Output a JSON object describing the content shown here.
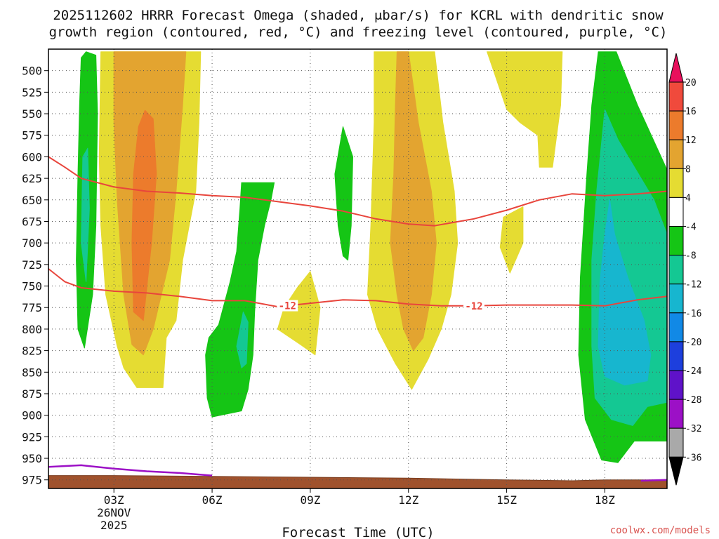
{
  "chart_data": {
    "type": "heatmap",
    "title_line1": "2025112602 HRRR Forecast Omega (shaded, μbar/s) for KCRL with dendritic snow",
    "title_line2": "growth region (contoured, red, °C) and freezing level (contoured, purple, °C)",
    "xlabel": "Forecast Time (UTC)",
    "ylabel": "",
    "credit": "coolwx.com/models",
    "x_range_hours": [
      1.0,
      19.9
    ],
    "y_range_mb": [
      475,
      985
    ],
    "y_ticks": [
      500,
      525,
      550,
      575,
      600,
      625,
      650,
      675,
      700,
      725,
      750,
      775,
      800,
      825,
      850,
      875,
      900,
      925,
      950,
      975
    ],
    "x_ticks": [
      {
        "hour": 3,
        "label": "03Z",
        "sub1": "26NOV",
        "sub2": "2025"
      },
      {
        "hour": 6,
        "label": "06Z"
      },
      {
        "hour": 9,
        "label": "09Z"
      },
      {
        "hour": 12,
        "label": "12Z"
      },
      {
        "hour": 15,
        "label": "15Z"
      },
      {
        "hour": 18,
        "label": "18Z"
      }
    ],
    "colorbar": {
      "labels": [
        "20",
        "16",
        "12",
        "8",
        "4",
        "-4",
        "-8",
        "-12",
        "-16",
        "-20",
        "-24",
        "-28",
        "-32",
        "-36"
      ],
      "colors": [
        "#e8105c",
        "#f04a3c",
        "#ec7b2c",
        "#e3a430",
        "#e5dc32",
        "#ffffff",
        "#15c515",
        "#14c893",
        "#17b6cf",
        "#1189e6",
        "#1d3fdd",
        "#5f12c9",
        "#9c10c6",
        "#a9a9a9",
        "#000000"
      ]
    },
    "omega_regions": [
      {
        "name": "green-band-03z",
        "value": -6,
        "color": "#15c515",
        "poly": [
          [
            2.0,
            485
          ],
          [
            2.15,
            478
          ],
          [
            2.45,
            482
          ],
          [
            2.5,
            550
          ],
          [
            2.45,
            680
          ],
          [
            2.35,
            760
          ],
          [
            2.1,
            822
          ],
          [
            1.9,
            800
          ],
          [
            1.85,
            720
          ],
          [
            1.9,
            620
          ],
          [
            1.95,
            540
          ]
        ]
      },
      {
        "name": "teal-band-03z",
        "value": -10,
        "color": "#14c893",
        "poly": [
          [
            2.05,
            600
          ],
          [
            2.2,
            590
          ],
          [
            2.25,
            660
          ],
          [
            2.15,
            745
          ],
          [
            2.0,
            700
          ]
        ]
      },
      {
        "name": "yellow-band-04z",
        "value": 6,
        "color": "#e5dc32",
        "poly": [
          [
            2.6,
            478
          ],
          [
            5.65,
            478
          ],
          [
            5.6,
            560
          ],
          [
            5.5,
            640
          ],
          [
            5.1,
            720
          ],
          [
            4.9,
            790
          ],
          [
            4.6,
            810
          ],
          [
            4.5,
            868
          ],
          [
            3.7,
            868
          ],
          [
            3.3,
            845
          ],
          [
            3.1,
            820
          ],
          [
            2.75,
            760
          ],
          [
            2.6,
            680
          ],
          [
            2.55,
            600
          ]
        ]
      },
      {
        "name": "orange-band-04z",
        "value": 10,
        "color": "#e3a430",
        "poly": [
          [
            3.0,
            478
          ],
          [
            5.2,
            478
          ],
          [
            5.1,
            540
          ],
          [
            4.9,
            640
          ],
          [
            4.7,
            720
          ],
          [
            4.2,
            800
          ],
          [
            3.9,
            830
          ],
          [
            3.55,
            818
          ],
          [
            3.3,
            760
          ],
          [
            3.1,
            650
          ],
          [
            3.0,
            560
          ]
        ]
      },
      {
        "name": "darkorange-core-04z",
        "value": 14,
        "color": "#ec7b2c",
        "poly": [
          [
            3.95,
            546
          ],
          [
            4.2,
            556
          ],
          [
            4.3,
            620
          ],
          [
            4.15,
            700
          ],
          [
            3.9,
            790
          ],
          [
            3.6,
            780
          ],
          [
            3.55,
            700
          ],
          [
            3.6,
            620
          ],
          [
            3.75,
            565
          ]
        ]
      },
      {
        "name": "green-band-07z",
        "value": -6,
        "color": "#15c515",
        "poly": [
          [
            6.9,
            630
          ],
          [
            7.9,
            630
          ],
          [
            7.8,
            650
          ],
          [
            7.6,
            680
          ],
          [
            7.4,
            720
          ],
          [
            7.3,
            780
          ],
          [
            7.25,
            830
          ],
          [
            7.1,
            870
          ],
          [
            6.9,
            895
          ],
          [
            6.0,
            902
          ],
          [
            5.85,
            880
          ],
          [
            5.8,
            830
          ],
          [
            5.9,
            810
          ],
          [
            6.2,
            795
          ],
          [
            6.55,
            745
          ],
          [
            6.75,
            710
          ],
          [
            6.85,
            660
          ]
        ]
      },
      {
        "name": "teal-core-07z",
        "value": -10,
        "color": "#14c893",
        "poly": [
          [
            6.95,
            780
          ],
          [
            7.1,
            792
          ],
          [
            7.05,
            840
          ],
          [
            6.9,
            845
          ],
          [
            6.75,
            820
          ]
        ]
      },
      {
        "name": "yellow-blob-09z",
        "value": 6,
        "color": "#e5dc32",
        "poly": [
          [
            9.0,
            733
          ],
          [
            9.3,
            775
          ],
          [
            9.15,
            830
          ],
          [
            8.7,
            818
          ],
          [
            8.0,
            800
          ],
          [
            8.2,
            775
          ],
          [
            8.6,
            752
          ]
        ]
      },
      {
        "name": "green-streak-10z",
        "value": -6,
        "color": "#15c515",
        "poly": [
          [
            10.0,
            565
          ],
          [
            10.3,
            600
          ],
          [
            10.25,
            680
          ],
          [
            10.15,
            720
          ],
          [
            10.0,
            715
          ],
          [
            9.85,
            680
          ],
          [
            9.75,
            620
          ]
        ]
      },
      {
        "name": "yellow-band-12z",
        "value": 6,
        "color": "#e5dc32",
        "poly": [
          [
            10.95,
            478
          ],
          [
            12.8,
            478
          ],
          [
            13.05,
            560
          ],
          [
            13.4,
            640
          ],
          [
            13.5,
            700
          ],
          [
            13.3,
            760
          ],
          [
            13.0,
            800
          ],
          [
            12.6,
            835
          ],
          [
            12.1,
            870
          ],
          [
            11.6,
            840
          ],
          [
            11.05,
            800
          ],
          [
            10.75,
            760
          ],
          [
            10.85,
            680
          ],
          [
            10.95,
            560
          ]
        ]
      },
      {
        "name": "orange-band-12z",
        "value": 10,
        "color": "#e3a430",
        "poly": [
          [
            11.65,
            478
          ],
          [
            12.0,
            478
          ],
          [
            12.3,
            560
          ],
          [
            12.7,
            640
          ],
          [
            12.85,
            700
          ],
          [
            12.7,
            760
          ],
          [
            12.45,
            810
          ],
          [
            12.15,
            825
          ],
          [
            11.85,
            800
          ],
          [
            11.65,
            760
          ],
          [
            11.45,
            700
          ],
          [
            11.55,
            620
          ],
          [
            11.6,
            540
          ]
        ]
      },
      {
        "name": "yellow-band-15z",
        "value": 6,
        "color": "#e5dc32",
        "poly": [
          [
            14.4,
            478
          ],
          [
            16.7,
            478
          ],
          [
            16.65,
            540
          ],
          [
            16.4,
            612
          ],
          [
            16.0,
            612
          ],
          [
            15.95,
            575
          ],
          [
            15.4,
            560
          ],
          [
            15.0,
            545
          ],
          [
            14.6,
            500
          ]
        ]
      },
      {
        "name": "yellow-blob-16z",
        "value": 6,
        "color": "#e5dc32",
        "poly": [
          [
            15.5,
            658
          ],
          [
            15.5,
            700
          ],
          [
            15.1,
            735
          ],
          [
            14.8,
            705
          ],
          [
            14.9,
            670
          ]
        ]
      },
      {
        "name": "green-region-18z",
        "value": -6,
        "color": "#15c515",
        "poly": [
          [
            17.8,
            478
          ],
          [
            18.35,
            478
          ],
          [
            19.0,
            540
          ],
          [
            19.6,
            590
          ],
          [
            19.9,
            615
          ],
          [
            19.9,
            930
          ],
          [
            18.9,
            930
          ],
          [
            18.4,
            955
          ],
          [
            17.9,
            952
          ],
          [
            17.4,
            905
          ],
          [
            17.2,
            830
          ],
          [
            17.25,
            740
          ],
          [
            17.45,
            620
          ],
          [
            17.6,
            540
          ]
        ]
      },
      {
        "name": "teal-region-18z",
        "value": -10,
        "color": "#14c893",
        "poly": [
          [
            18.0,
            545
          ],
          [
            18.4,
            580
          ],
          [
            19.5,
            650
          ],
          [
            19.9,
            690
          ],
          [
            19.9,
            885
          ],
          [
            19.3,
            890
          ],
          [
            18.85,
            912
          ],
          [
            18.2,
            905
          ],
          [
            17.7,
            880
          ],
          [
            17.6,
            820
          ],
          [
            17.6,
            720
          ],
          [
            17.75,
            640
          ]
        ]
      },
      {
        "name": "cyan-core-18z",
        "value": -14,
        "color": "#17b6cf",
        "poly": [
          [
            18.15,
            650
          ],
          [
            18.3,
            690
          ],
          [
            18.7,
            740
          ],
          [
            19.2,
            790
          ],
          [
            19.4,
            830
          ],
          [
            19.3,
            860
          ],
          [
            18.6,
            865
          ],
          [
            18.0,
            855
          ],
          [
            17.8,
            820
          ],
          [
            17.85,
            745
          ],
          [
            18.0,
            690
          ]
        ]
      }
    ],
    "dgz_contour_label": "-12",
    "dgz_upper_line": [
      [
        1.0,
        600
      ],
      [
        1.5,
        612
      ],
      [
        2.0,
        625
      ],
      [
        3.0,
        635
      ],
      [
        4.0,
        640
      ],
      [
        5.0,
        642
      ],
      [
        6.0,
        645
      ],
      [
        7.0,
        647
      ],
      [
        8.0,
        652
      ],
      [
        9.0,
        657
      ],
      [
        10.0,
        663
      ],
      [
        11.0,
        672
      ],
      [
        12.0,
        678
      ],
      [
        12.8,
        680
      ],
      [
        14.0,
        672
      ],
      [
        15.0,
        662
      ],
      [
        16.0,
        650
      ],
      [
        17.0,
        643
      ],
      [
        18.0,
        645
      ],
      [
        19.0,
        643
      ],
      [
        19.9,
        640
      ]
    ],
    "dgz_lower_line": [
      [
        1.0,
        730
      ],
      [
        1.5,
        745
      ],
      [
        2.0,
        752
      ],
      [
        3.0,
        756
      ],
      [
        4.0,
        758
      ],
      [
        5.0,
        762
      ],
      [
        6.0,
        767
      ],
      [
        7.0,
        767
      ],
      [
        8.0,
        774
      ],
      [
        9.0,
        770
      ],
      [
        10.0,
        766
      ],
      [
        11.0,
        767
      ],
      [
        12.0,
        771
      ],
      [
        13.0,
        773
      ],
      [
        14.0,
        773
      ],
      [
        15.0,
        772
      ],
      [
        16.0,
        772
      ],
      [
        17.0,
        772
      ],
      [
        18.0,
        773
      ],
      [
        19.0,
        766
      ],
      [
        19.9,
        762
      ]
    ],
    "freezing_level_line": [
      [
        1.0,
        960
      ],
      [
        2.0,
        958
      ],
      [
        3.0,
        962
      ],
      [
        4.0,
        965
      ],
      [
        5.0,
        967
      ],
      [
        6.0,
        970
      ]
    ],
    "freezing_level_line_2": [
      [
        19.1,
        976
      ],
      [
        19.9,
        975
      ]
    ],
    "terrain_top": [
      [
        1.0,
        970
      ],
      [
        3.0,
        970
      ],
      [
        6.0,
        971
      ],
      [
        9.0,
        972
      ],
      [
        12.0,
        973
      ],
      [
        15.0,
        975
      ],
      [
        17.0,
        976
      ],
      [
        18.0,
        975
      ],
      [
        19.9,
        975
      ]
    ]
  }
}
